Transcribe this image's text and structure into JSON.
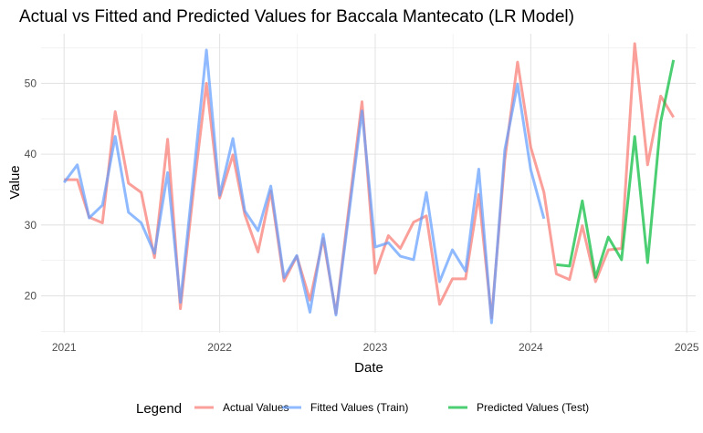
{
  "chart_data": {
    "type": "line",
    "title": "Actual vs Fitted and Predicted Values for Baccala Mantecato (LR Model)",
    "xlabel": "Date",
    "ylabel": "Value",
    "x_ticks": [
      "2021",
      "2022",
      "2023",
      "2024",
      "2025"
    ],
    "y_ticks": [
      20,
      30,
      40,
      50
    ],
    "xlim": [
      "2020-11-08",
      "2025-01-22"
    ],
    "ylim": [
      14.8,
      57
    ],
    "grid": true,
    "legend": {
      "title": "Legend",
      "position": "bottom",
      "entries": [
        "Actual Values",
        "Fitted Values (Train)",
        "Predicted Values (Test)"
      ]
    },
    "series": [
      {
        "name": "Actual Values",
        "color": "#f8766d",
        "x": [
          "2021-01",
          "2021-02",
          "2021-03",
          "2021-04",
          "2021-05",
          "2021-06",
          "2021-07",
          "2021-08",
          "2021-09",
          "2021-10",
          "2021-11",
          "2021-12",
          "2022-01",
          "2022-02",
          "2022-03",
          "2022-04",
          "2022-05",
          "2022-06",
          "2022-07",
          "2022-08",
          "2022-09",
          "2022-10",
          "2022-11",
          "2022-12",
          "2023-01",
          "2023-02",
          "2023-03",
          "2023-04",
          "2023-05",
          "2023-06",
          "2023-07",
          "2023-08",
          "2023-09",
          "2023-10",
          "2023-11",
          "2023-12",
          "2024-01",
          "2024-02",
          "2024-03",
          "2024-04",
          "2024-05",
          "2024-06",
          "2024-07",
          "2024-08",
          "2024-09",
          "2024-10",
          "2024-11",
          "2024-12"
        ],
        "values": [
          36.4,
          36.4,
          31.1,
          30.3,
          46.0,
          35.9,
          34.6,
          25.4,
          42.1,
          18.2,
          35.0,
          50.0,
          33.8,
          39.9,
          31.5,
          26.2,
          34.8,
          22.1,
          25.6,
          19.4,
          28.1,
          17.5,
          32.8,
          47.4,
          23.2,
          28.5,
          26.7,
          30.4,
          31.3,
          18.8,
          22.4,
          22.4,
          34.3,
          16.9,
          39.2,
          53.0,
          41.0,
          34.6,
          23.1,
          22.3,
          29.9,
          22.0,
          26.5,
          26.7,
          55.6,
          38.5,
          48.2,
          45.2
        ]
      },
      {
        "name": "Fitted Values (Train)",
        "color": "#619cff",
        "x": [
          "2021-01",
          "2021-02",
          "2021-03",
          "2021-04",
          "2021-05",
          "2021-06",
          "2021-07",
          "2021-08",
          "2021-09",
          "2021-10",
          "2021-11",
          "2021-12",
          "2022-01",
          "2022-02",
          "2022-03",
          "2022-04",
          "2022-05",
          "2022-06",
          "2022-07",
          "2022-08",
          "2022-09",
          "2022-10",
          "2022-11",
          "2022-12",
          "2023-01",
          "2023-02",
          "2023-03",
          "2023-04",
          "2023-05",
          "2023-06",
          "2023-07",
          "2023-08",
          "2023-09",
          "2023-10",
          "2023-11",
          "2023-12",
          "2024-01",
          "2024-02"
        ],
        "values": [
          36.0,
          38.5,
          31.0,
          32.8,
          42.5,
          31.8,
          30.3,
          26.0,
          37.4,
          19.1,
          37.1,
          54.7,
          34.2,
          42.2,
          32.0,
          29.2,
          35.5,
          22.6,
          25.7,
          17.7,
          28.7,
          17.3,
          31.9,
          46.1,
          26.9,
          27.5,
          25.6,
          25.1,
          34.6,
          22.0,
          26.5,
          23.5,
          37.9,
          16.2,
          40.6,
          49.9,
          37.8,
          30.9
        ]
      },
      {
        "name": "Predicted Values (Test)",
        "color": "#00ba38",
        "x": [
          "2024-03",
          "2024-04",
          "2024-05",
          "2024-06",
          "2024-07",
          "2024-08",
          "2024-09",
          "2024-10",
          "2024-11",
          "2024-12"
        ],
        "values": [
          24.4,
          24.2,
          33.4,
          22.6,
          28.3,
          25.1,
          42.5,
          24.7,
          44.6,
          53.3
        ]
      }
    ]
  }
}
